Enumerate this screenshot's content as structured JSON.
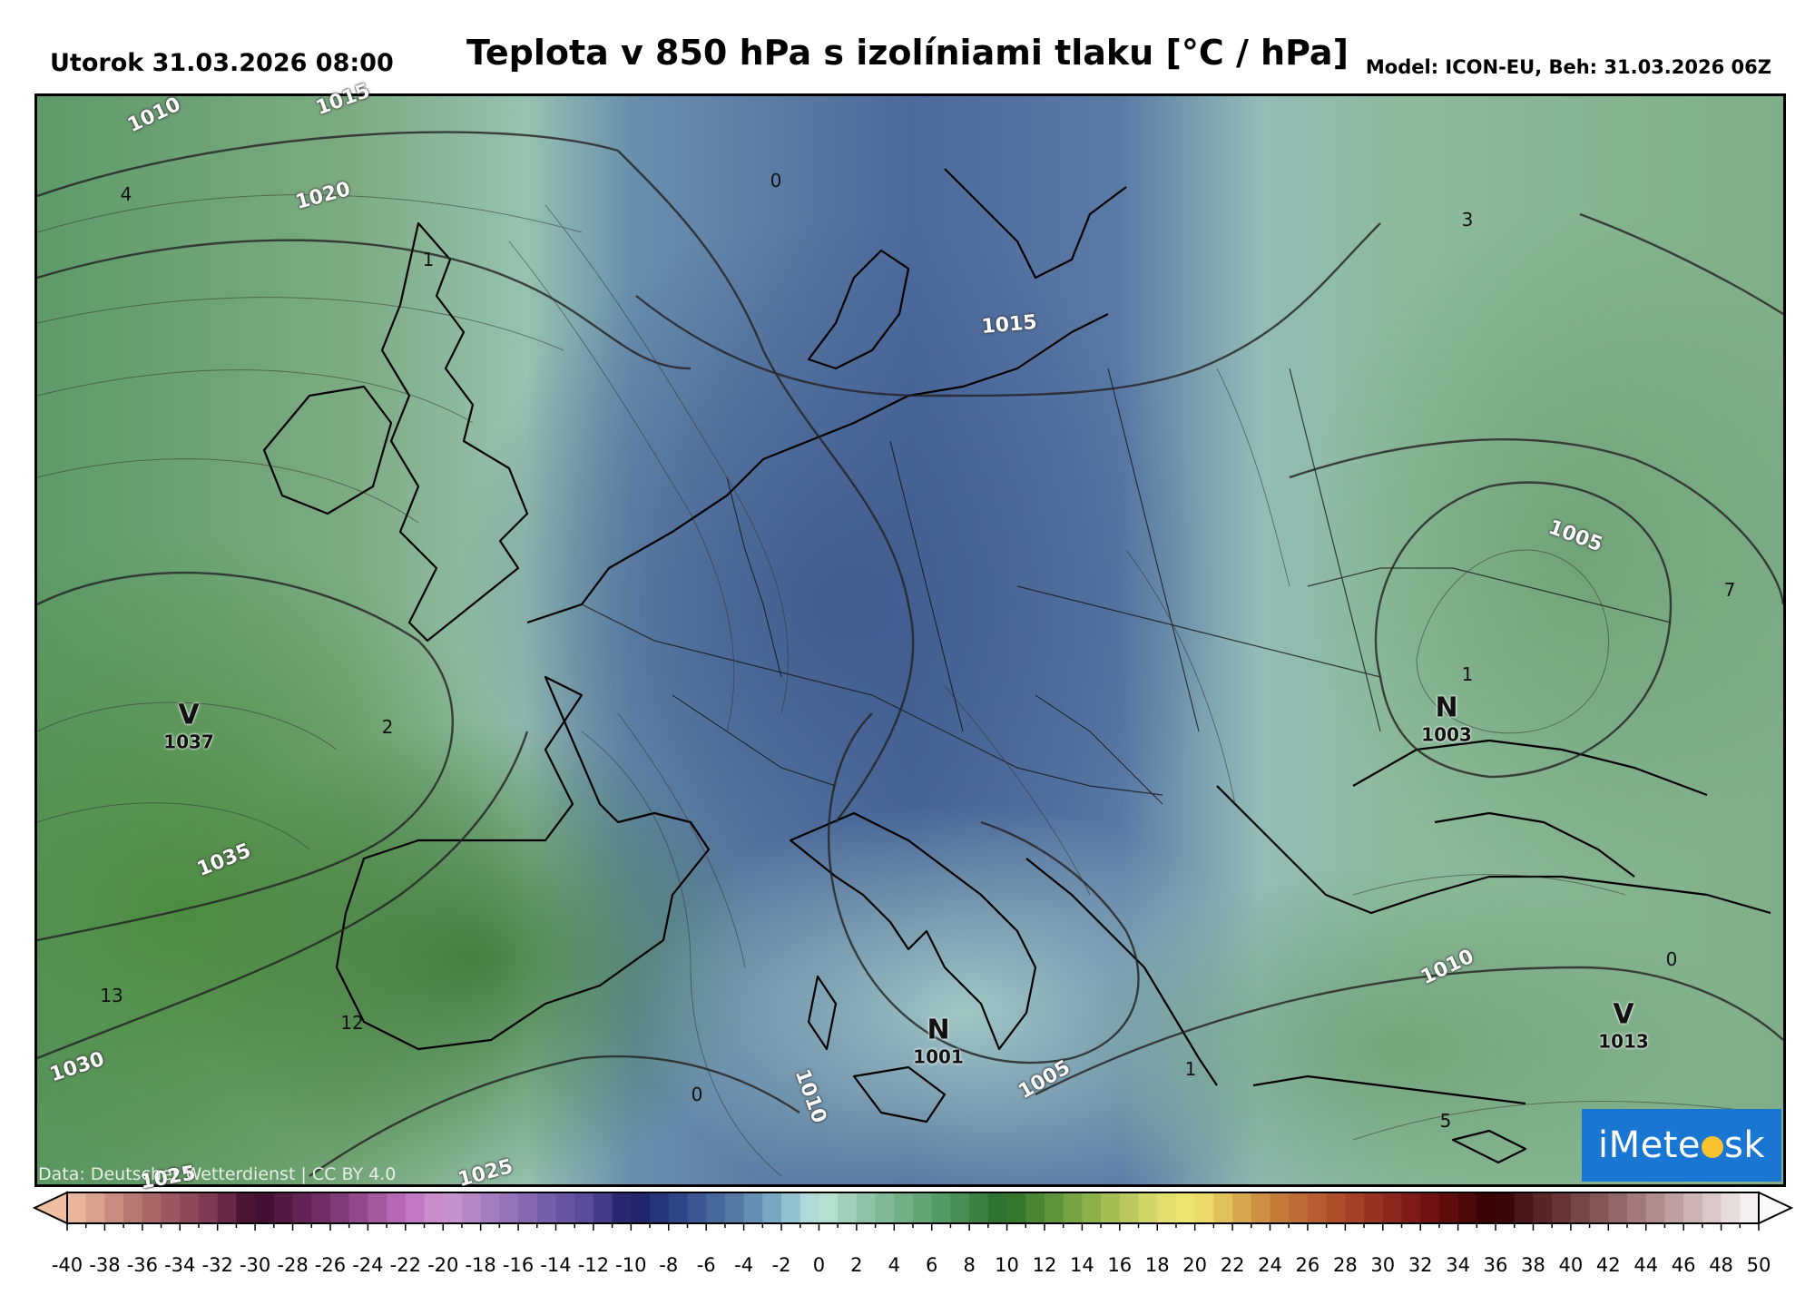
{
  "header": {
    "datetime": "Utorok 31.03.2026 08:00",
    "title": "Teplota v 850 hPa s izolíniami tlaku [°C / hPa]",
    "model": "Model: ICON-EU, Beh: 31.03.2026 06Z"
  },
  "map": {
    "credit": "Data: Deutscher Wetterdienst | CC BY 4.0",
    "logo": {
      "prefix": "iMete",
      "suffix": "sk"
    },
    "isobar_labels": [
      "1010",
      "1015",
      "1020",
      "1015",
      "1005",
      "1035",
      "1030",
      "1025",
      "1025",
      "1010",
      "1005",
      "1010"
    ],
    "temperature_labels": [
      "4",
      "1",
      "0",
      "3",
      "2",
      "7",
      "1",
      "13",
      "12",
      "0",
      "1",
      "0",
      "5"
    ],
    "pressure_centers": [
      {
        "type": "V",
        "value": "1037"
      },
      {
        "type": "N",
        "value": "1003"
      },
      {
        "type": "N",
        "value": "1001"
      },
      {
        "type": "V",
        "value": "1013"
      }
    ]
  },
  "colorbar": {
    "unit": "°C",
    "ticks": [
      "-40",
      "-38",
      "-36",
      "-34",
      "-32",
      "-30",
      "-28",
      "-26",
      "-24",
      "-22",
      "-20",
      "-18",
      "-16",
      "-14",
      "-12",
      "-10",
      "-8",
      "-6",
      "-4",
      "-2",
      "0",
      "2",
      "4",
      "6",
      "8",
      "10",
      "12",
      "14",
      "16",
      "18",
      "20",
      "22",
      "24",
      "26",
      "28",
      "30",
      "32",
      "34",
      "36",
      "38",
      "40",
      "42",
      "44",
      "46",
      "48",
      "50"
    ],
    "min": -40,
    "max": 50,
    "step": 1
  }
}
